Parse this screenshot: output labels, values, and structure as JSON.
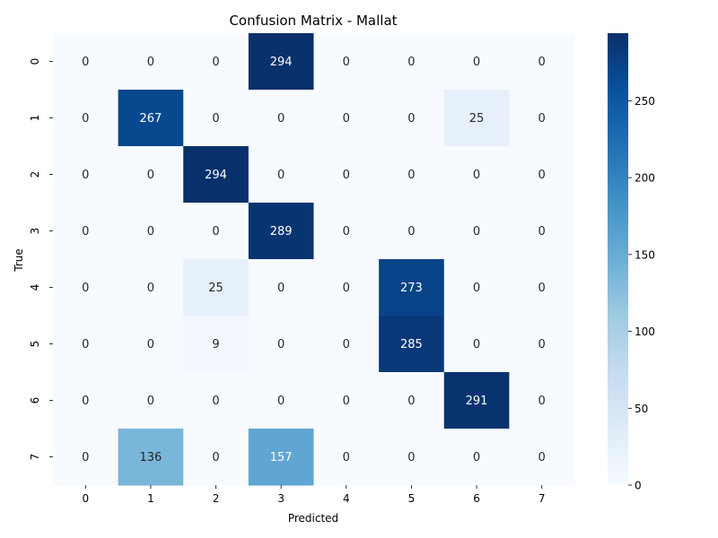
{
  "chart_data": {
    "type": "heatmap",
    "title": "Confusion Matrix - Mallat",
    "xlabel": "Predicted",
    "ylabel": "True",
    "x_categories": [
      "0",
      "1",
      "2",
      "3",
      "4",
      "5",
      "6",
      "7"
    ],
    "y_categories": [
      "0",
      "1",
      "2",
      "3",
      "4",
      "5",
      "6",
      "7"
    ],
    "values": [
      [
        0,
        0,
        0,
        294,
        0,
        0,
        0,
        0
      ],
      [
        0,
        267,
        0,
        0,
        0,
        0,
        25,
        0
      ],
      [
        0,
        0,
        294,
        0,
        0,
        0,
        0,
        0
      ],
      [
        0,
        0,
        0,
        289,
        0,
        0,
        0,
        0
      ],
      [
        0,
        0,
        25,
        0,
        0,
        273,
        0,
        0
      ],
      [
        0,
        0,
        9,
        0,
        0,
        285,
        0,
        0
      ],
      [
        0,
        0,
        0,
        0,
        0,
        0,
        291,
        0
      ],
      [
        0,
        136,
        0,
        157,
        0,
        0,
        0,
        0
      ]
    ],
    "colorbar": {
      "colormap": "Blues",
      "range": [
        0,
        294
      ],
      "ticks": [
        0,
        50,
        100,
        150,
        200,
        250
      ]
    },
    "colors": {
      "low": "#f7fbff",
      "high": "#08306b",
      "text_dark": "#262626",
      "text_light": "#ffffff"
    }
  }
}
